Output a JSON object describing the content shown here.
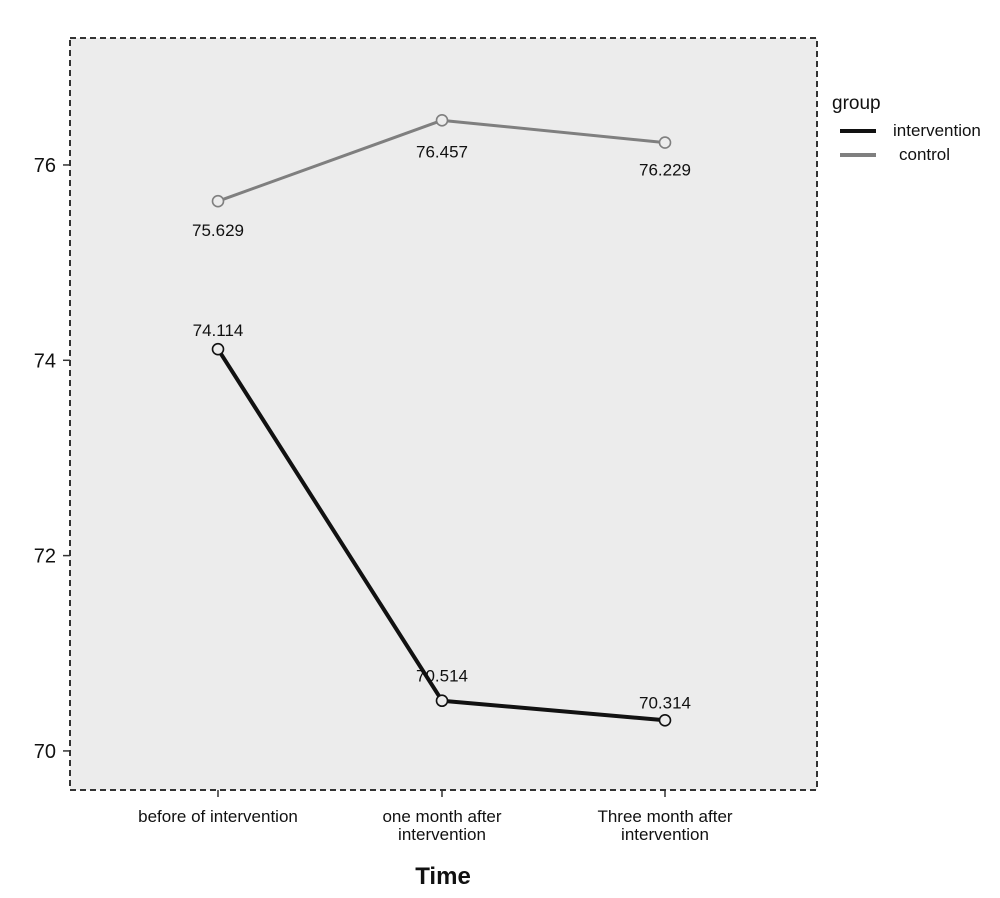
{
  "chart_data": {
    "type": "line",
    "xlabel": "Time",
    "ylabel": "",
    "ylim": [
      69.6,
      77.3
    ],
    "yticks": [
      70,
      72,
      74,
      76
    ],
    "grid": false,
    "legend_placement": "right",
    "categories": [
      [
        "before of intervention"
      ],
      [
        "one month after",
        "intervention"
      ],
      [
        "Three month after",
        "intervention"
      ]
    ],
    "legend_title": "group",
    "series": [
      {
        "name": "intervention",
        "values": [
          74.114,
          70.514,
          70.314
        ],
        "labels": [
          "74.114",
          "70.514",
          "70.314"
        ],
        "color": "#111111"
      },
      {
        "name": "control",
        "values": [
          75.629,
          76.457,
          76.229
        ],
        "labels": [
          "75.629",
          "76.457",
          "76.229"
        ],
        "color": "#7f7f7f"
      }
    ],
    "colors": {
      "plot_background": "#ececec",
      "frame": "#333333"
    }
  }
}
